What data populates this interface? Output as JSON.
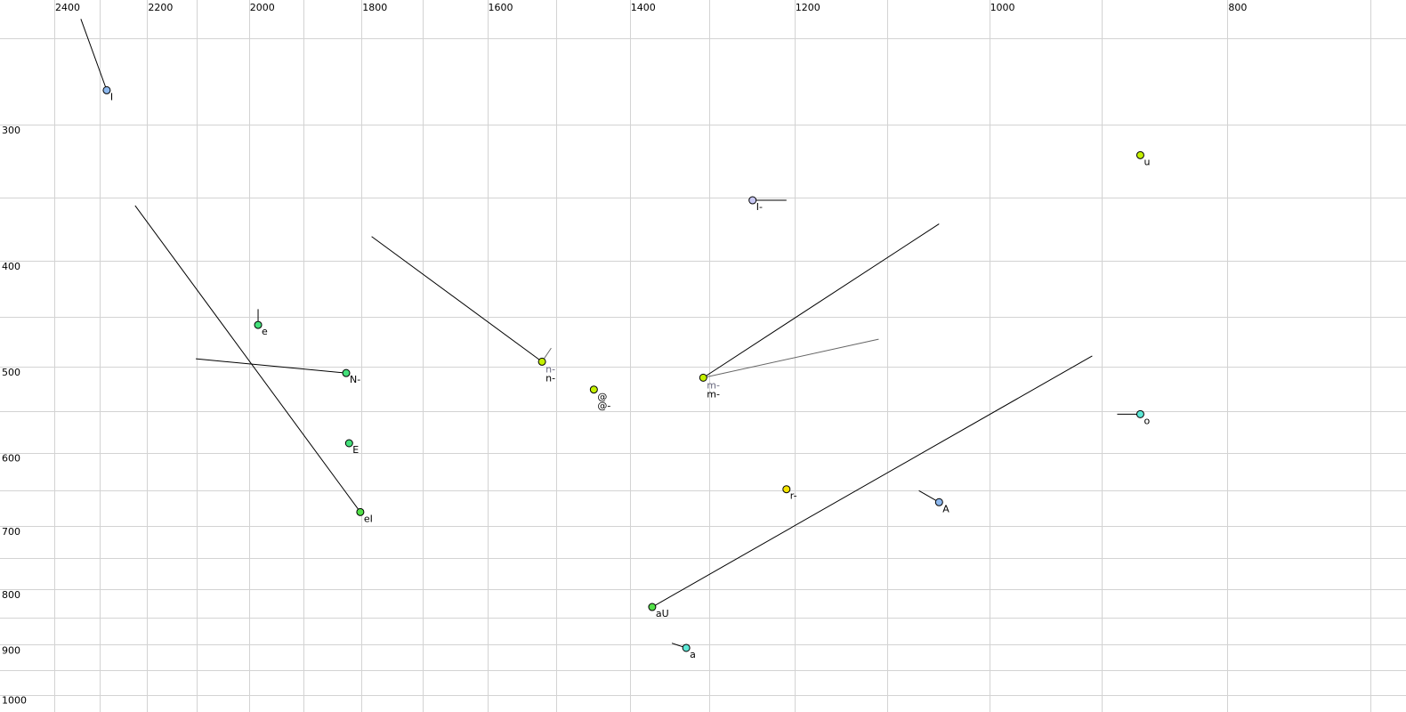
{
  "chart_data": {
    "type": "scatter",
    "title": "",
    "xlabel": "",
    "ylabel": "",
    "x_scale": "log",
    "y_scale": "log",
    "x_reversed": true,
    "xlim": [
      2400,
      700
    ],
    "ylim": [
      250,
      1000
    ],
    "grid": true,
    "x_gridlines": [
      2400,
      2300,
      2200,
      2100,
      2000,
      1900,
      1800,
      1700,
      1600,
      1500,
      1400,
      1300,
      1200,
      1100,
      1000,
      900,
      800,
      700
    ],
    "x_tick_labels": [
      "2400",
      "2200",
      "2000",
      "1800",
      "1600",
      "1400",
      "1200",
      "1000",
      "800"
    ],
    "y_gridlines": [
      250,
      300,
      350,
      400,
      450,
      500,
      550,
      600,
      650,
      700,
      750,
      800,
      850,
      900,
      950,
      1000
    ],
    "y_tick_labels": [
      "300",
      "400",
      "500",
      "600",
      "700",
      "800",
      "900",
      "1000"
    ],
    "points": [
      {
        "label": "I",
        "x": 2285,
        "y": 279,
        "color": "#8db8ee",
        "trails": [
          {
            "x": 2341,
            "y": 240
          }
        ]
      },
      {
        "label": "e",
        "x": 1983,
        "y": 458,
        "color": "#44e07a",
        "trails": [
          {
            "x": 1983,
            "y": 443
          }
        ]
      },
      {
        "label": "N-",
        "x": 1826,
        "y": 507,
        "color": "#44e07a",
        "trails": [
          {
            "x": 2102,
            "y": 492
          }
        ]
      },
      {
        "label": "E",
        "x": 1821,
        "y": 588,
        "color": "#44e07a",
        "trails": []
      },
      {
        "label": "eI",
        "x": 1802,
        "y": 680,
        "color": "#52e048",
        "trails": [
          {
            "x": 2225,
            "y": 356
          }
        ]
      },
      {
        "label": "n-",
        "label2": "n-",
        "x": 1520,
        "y": 495,
        "color": "#c4f000",
        "trails": [
          {
            "x": 1783,
            "y": 380
          },
          {
            "x": 1507,
            "y": 481,
            "gray": true
          }
        ]
      },
      {
        "label": "@",
        "label2": "@-",
        "x": 1448,
        "y": 525,
        "color": "#c4f000",
        "trails": []
      },
      {
        "label": "m-",
        "label2": "m-",
        "x": 1307,
        "y": 512,
        "color": "#c4f000",
        "trails": [
          {
            "x": 1048,
            "y": 370
          },
          {
            "x": 1109,
            "y": 472,
            "gray": true
          }
        ]
      },
      {
        "label": "I-",
        "x": 1248,
        "y": 352,
        "color": "#c8c8f4",
        "trails": [
          {
            "x": 1209,
            "y": 352
          }
        ]
      },
      {
        "label": "u",
        "x": 868,
        "y": 320,
        "color": "#c4f000",
        "trails": []
      },
      {
        "label": "o",
        "x": 868,
        "y": 553,
        "color": "#5ce8d6",
        "trails": [
          {
            "x": 887,
            "y": 553
          }
        ]
      },
      {
        "label": "r-",
        "x": 1209,
        "y": 648,
        "color": "#f4e400",
        "trails": [
          {
            "x": 1209,
            "y": 643
          }
        ]
      },
      {
        "label": "A",
        "x": 1048,
        "y": 666,
        "color": "#8db8ee",
        "trails": [
          {
            "x": 1068,
            "y": 650
          }
        ]
      },
      {
        "label": "aU",
        "x": 1371,
        "y": 831,
        "color": "#52e048",
        "trails": [
          {
            "x": 908,
            "y": 489
          }
        ]
      },
      {
        "label": "a",
        "x": 1328,
        "y": 906,
        "color": "#5ce8d6",
        "trails": [
          {
            "x": 1346,
            "y": 897
          }
        ]
      }
    ]
  }
}
